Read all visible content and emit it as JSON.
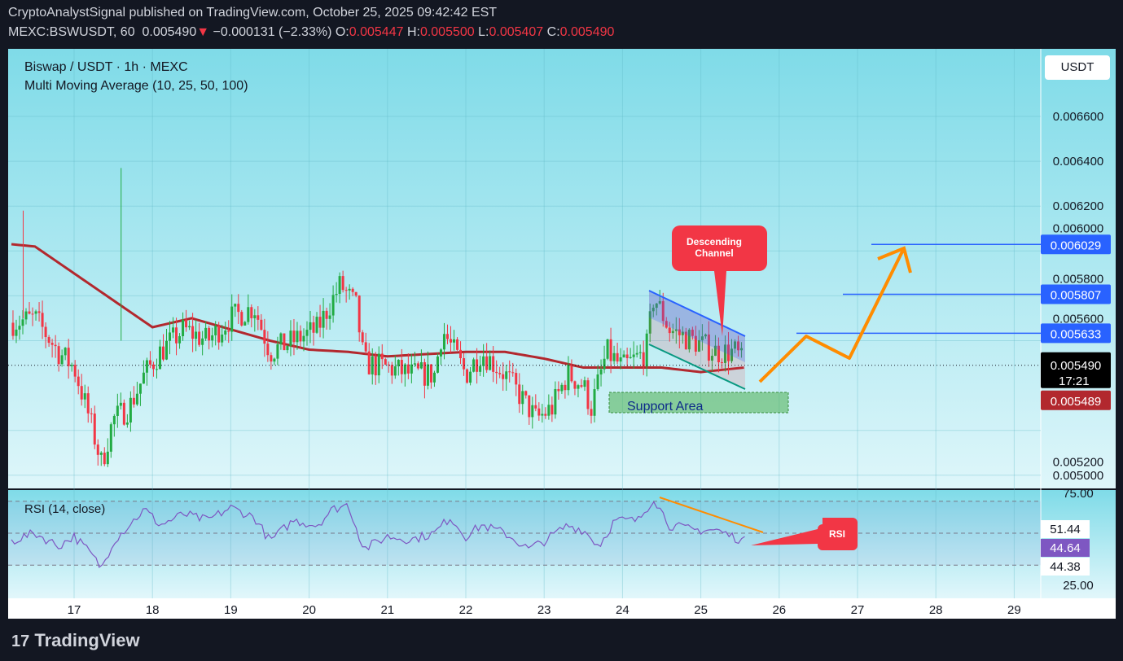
{
  "header": {
    "publisher": "CryptoAnalystSignal published on TradingView.com, October 25, 2025 09:42:42 EST",
    "symbol": "MEXC:BSWUSDT, 60",
    "last": "0.005490",
    "arrow": "▼",
    "change": "−0.000131 (−2.33%)",
    "o_label": "O:",
    "o": "0.005447",
    "h_label": "H:",
    "h": "0.005500",
    "l_label": "L:",
    "l": "0.005407",
    "c_label": "C:",
    "c": "0.005490"
  },
  "legend": {
    "title": "Biswap / USDT · 1h · MEXC",
    "indicator": "Multi Moving Average (10, 25, 50, 100)",
    "rsi": "RSI (14, close)"
  },
  "currency": "USDT",
  "colors": {
    "up": "#22ab43",
    "down": "#f23645",
    "ma": "#b2282e",
    "level": "#2962ff",
    "arrow": "#ff8c00",
    "rsi": "#7e57c2"
  },
  "chart_data": {
    "type": "candlestick",
    "title": "Biswap / USDT · 1h · MEXC",
    "x_ticks": [
      "17",
      "18",
      "19",
      "20",
      "21",
      "22",
      "23",
      "24",
      "25",
      "26",
      "27",
      "28",
      "29"
    ],
    "y_ticks": [
      "0.006600",
      "0.006400",
      "0.006200",
      "0.006000",
      "0.005800",
      "0.005600",
      "0.005200",
      "0.005000"
    ],
    "ylim": [
      0.00494,
      0.00684
    ],
    "price_path": [
      [
        16.2,
        0.00568
      ],
      [
        16.5,
        0.0057
      ],
      [
        16.8,
        0.00555
      ],
      [
        17.0,
        0.00548
      ],
      [
        17.2,
        0.00525
      ],
      [
        17.35,
        0.00505
      ],
      [
        17.5,
        0.00525
      ],
      [
        17.7,
        0.0053
      ],
      [
        17.9,
        0.00545
      ],
      [
        18.1,
        0.00555
      ],
      [
        18.4,
        0.00565
      ],
      [
        18.7,
        0.0056
      ],
      [
        19.0,
        0.0057
      ],
      [
        19.3,
        0.00575
      ],
      [
        19.5,
        0.00555
      ],
      [
        19.8,
        0.0056
      ],
      [
        20.1,
        0.00565
      ],
      [
        20.4,
        0.00585
      ],
      [
        20.6,
        0.00575
      ],
      [
        20.7,
        0.0055
      ],
      [
        21.0,
        0.00548
      ],
      [
        21.3,
        0.00545
      ],
      [
        21.6,
        0.00545
      ],
      [
        21.7,
        0.00565
      ],
      [
        22.0,
        0.00545
      ],
      [
        22.2,
        0.00555
      ],
      [
        22.5,
        0.00545
      ],
      [
        22.7,
        0.00535
      ],
      [
        22.9,
        0.00525
      ],
      [
        23.1,
        0.0053
      ],
      [
        23.3,
        0.00545
      ],
      [
        23.5,
        0.0054
      ],
      [
        23.6,
        0.0053
      ],
      [
        23.8,
        0.00555
      ],
      [
        24.0,
        0.00548
      ],
      [
        24.3,
        0.00555
      ],
      [
        24.4,
        0.0058
      ],
      [
        24.6,
        0.00565
      ],
      [
        24.9,
        0.0056
      ],
      [
        25.2,
        0.00555
      ],
      [
        25.45,
        0.00555
      ],
      [
        25.55,
        0.00549
      ]
    ],
    "ma_path": [
      [
        16.2,
        0.00603
      ],
      [
        16.5,
        0.00602
      ],
      [
        17,
        0.0059
      ],
      [
        17.5,
        0.00578
      ],
      [
        18,
        0.00566
      ],
      [
        18.5,
        0.0057
      ],
      [
        19,
        0.00565
      ],
      [
        19.5,
        0.0056
      ],
      [
        20,
        0.00556
      ],
      [
        20.5,
        0.00555
      ],
      [
        21,
        0.00553
      ],
      [
        22,
        0.00555
      ],
      [
        22.5,
        0.00555
      ],
      [
        23,
        0.00552
      ],
      [
        23.5,
        0.00548
      ],
      [
        24,
        0.00548
      ],
      [
        24.5,
        0.00548
      ],
      [
        25,
        0.00546
      ],
      [
        25.55,
        0.00548
      ]
    ],
    "rsi": {
      "ylim": [
        25,
        75
      ],
      "ticks": [
        "75.00",
        "25.00"
      ],
      "bands": [
        70,
        50,
        30
      ],
      "path": [
        [
          16.2,
          45
        ],
        [
          16.5,
          50
        ],
        [
          16.8,
          42
        ],
        [
          17.0,
          48
        ],
        [
          17.2,
          38
        ],
        [
          17.35,
          28
        ],
        [
          17.5,
          45
        ],
        [
          17.7,
          55
        ],
        [
          17.9,
          65
        ],
        [
          18.1,
          55
        ],
        [
          18.4,
          62
        ],
        [
          18.7,
          58
        ],
        [
          19.0,
          66
        ],
        [
          19.3,
          60
        ],
        [
          19.5,
          45
        ],
        [
          19.8,
          58
        ],
        [
          20.1,
          55
        ],
        [
          20.3,
          65
        ],
        [
          20.5,
          68
        ],
        [
          20.7,
          40
        ],
        [
          21.0,
          48
        ],
        [
          21.3,
          46
        ],
        [
          21.6,
          50
        ],
        [
          21.8,
          60
        ],
        [
          22.0,
          48
        ],
        [
          22.2,
          55
        ],
        [
          22.5,
          50
        ],
        [
          22.8,
          40
        ],
        [
          23.0,
          45
        ],
        [
          23.3,
          55
        ],
        [
          23.5,
          52
        ],
        [
          23.7,
          42
        ],
        [
          23.9,
          58
        ],
        [
          24.2,
          58
        ],
        [
          24.4,
          72
        ],
        [
          24.6,
          55
        ],
        [
          24.9,
          52
        ],
        [
          25.2,
          52
        ],
        [
          25.4,
          48
        ],
        [
          25.55,
          45
        ]
      ],
      "labels": [
        "51.44",
        "44.64",
        "44.38"
      ]
    },
    "price_labels": [
      "0.006029",
      "0.005807",
      "0.005633",
      "0.005490",
      "17:21",
      "0.005489"
    ],
    "annotations": {
      "channel": "Descending Channel",
      "support": "Support Area",
      "rsi": "RSI"
    }
  },
  "footer": {
    "brand": "TradingView"
  }
}
